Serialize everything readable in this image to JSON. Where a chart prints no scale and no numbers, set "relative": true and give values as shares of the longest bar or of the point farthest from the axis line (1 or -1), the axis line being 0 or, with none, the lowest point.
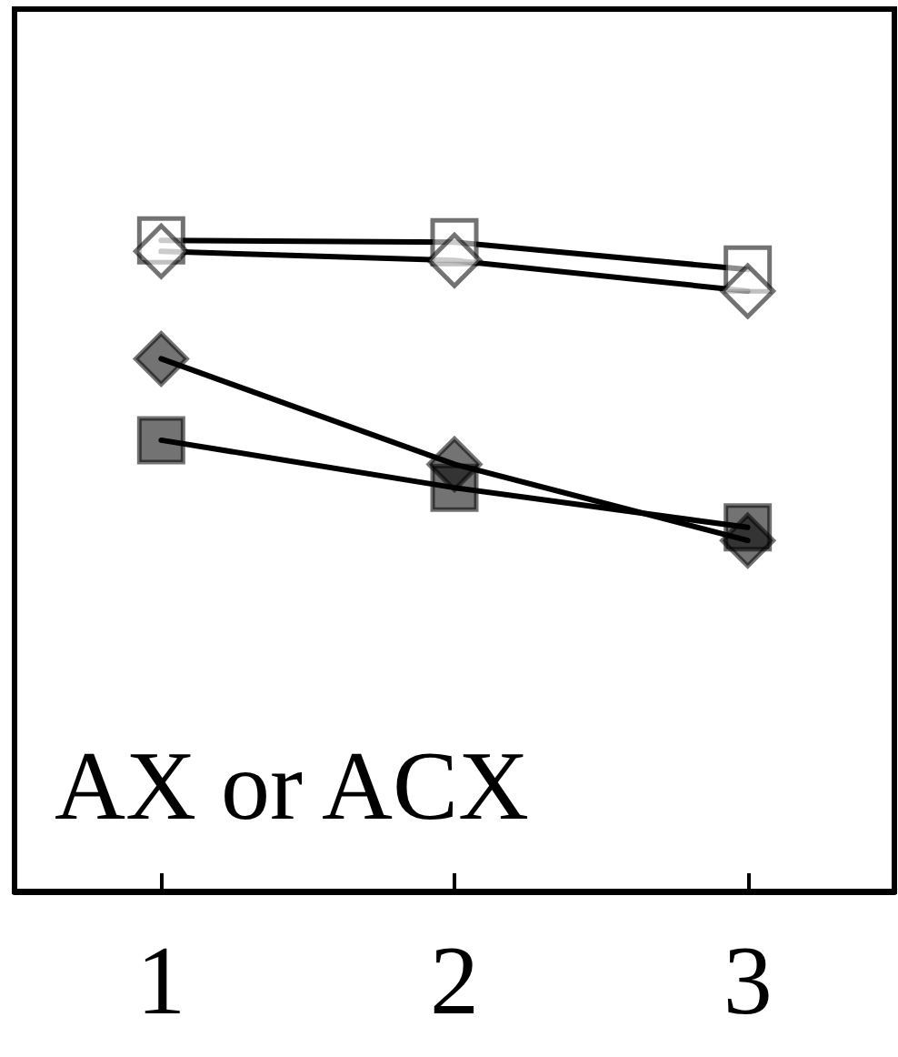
{
  "chart_data": {
    "type": "line",
    "relative": true,
    "categories": [
      "1",
      "2",
      "3"
    ],
    "series": [
      {
        "color": "#ffffff",
        "marker": "square",
        "values": [
          1,
          0.997,
          0.955
        ]
      },
      {
        "color": "#ffffff",
        "marker": "diamond",
        "values": [
          0.983,
          0.969,
          0.922
        ]
      },
      {
        "color": "#000000",
        "marker": "diamond",
        "values": [
          0.818,
          0.656,
          0.539
        ]
      },
      {
        "color": "#000000",
        "marker": "square",
        "values": [
          0.693,
          0.62,
          0.559
        ]
      }
    ],
    "annotations": [
      "AX or ACX"
    ],
    "grid": false,
    "line_style": "solid"
  }
}
